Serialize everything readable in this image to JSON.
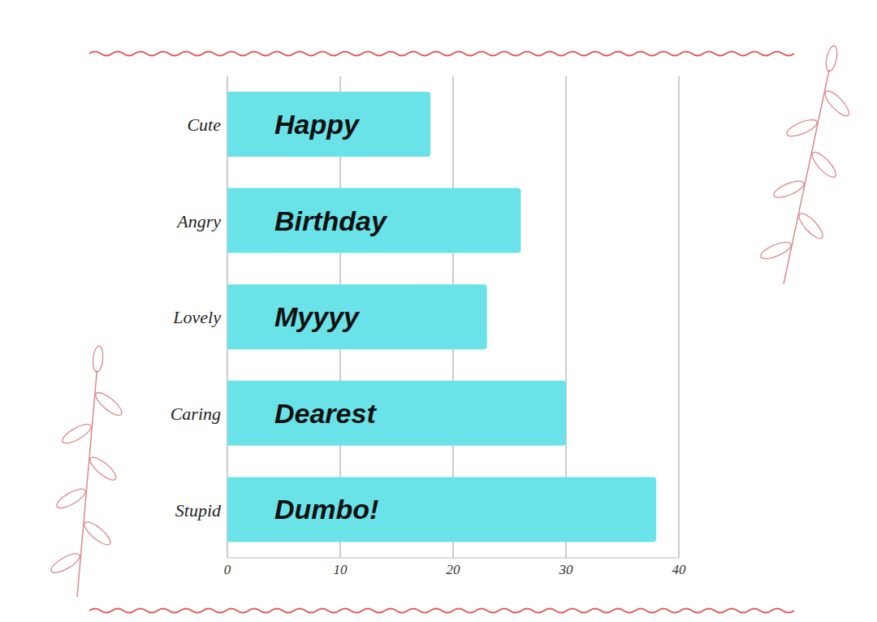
{
  "chart_data": {
    "type": "bar",
    "orientation": "horizontal",
    "categories": [
      "Cute",
      "Angry",
      "Lovely",
      "Caring",
      "Stupid"
    ],
    "values": [
      18,
      26,
      23,
      30,
      38
    ],
    "annotations": [
      "Happy",
      "Birthday",
      "Myyyy",
      "Dearest",
      "Dumbo!"
    ],
    "color": "#6ae3e8",
    "xlim": [
      0,
      40
    ],
    "xticks": [
      0,
      10,
      20,
      30,
      40
    ],
    "grid": true
  }
}
